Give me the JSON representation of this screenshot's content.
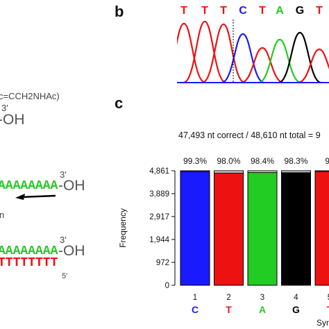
{
  "colors": {
    "A": "#22cc22",
    "C": "#1a1aff",
    "G": "#000000",
    "T": "#ee1111",
    "arrow": "#000000"
  },
  "panel_a": {
    "modification": "c=CCH2NHAc)",
    "top_three_prime": "3′",
    "top_oh": "-OH",
    "strand1_seq": "AAAAAAAA",
    "strand1_oh": "-OH",
    "strand1_three_prime": "3′",
    "fragment_n": "n",
    "strand2_seq": "AAAAAAAA",
    "strand2_oh": "-OH",
    "strand2_three_prime": "3′",
    "strand2_complement": "TTTTTTTT",
    "five_prime": "5′"
  },
  "panel_b": {
    "label": "b",
    "bases": [
      "T",
      "T",
      "T",
      "C",
      "T",
      "A",
      "G",
      "T"
    ]
  },
  "panel_c": {
    "label": "c",
    "summary": "47,493 nt correct / 48,610 nt total = 9",
    "ylabel": "Frequency",
    "xlabel_partial": "Syn"
  },
  "chart_data": {
    "type": "bar",
    "categories": [
      "1",
      "2",
      "3",
      "4",
      "5"
    ],
    "bases": [
      "C",
      "T",
      "A",
      "G",
      "T"
    ],
    "values": [
      4827,
      4765,
      4784,
      4779,
      4827
    ],
    "total": 4861,
    "percent_labels": [
      "99.3%",
      "98.0%",
      "98.4%",
      "98.3%",
      "99"
    ],
    "yticks": [
      "0",
      "972",
      "1,944",
      "2,917",
      "3,889",
      "4,861"
    ],
    "ylim": [
      0,
      4861
    ],
    "ylabel": "Frequency"
  }
}
